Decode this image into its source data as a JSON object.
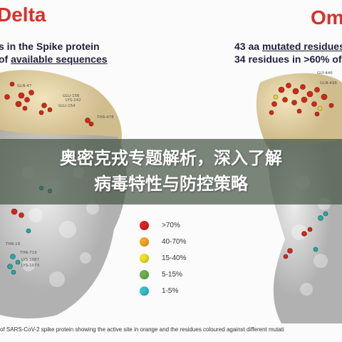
{
  "headings": {
    "left": "Delta",
    "right": "Omi"
  },
  "captions": {
    "left_line1": "s in the Spike protein",
    "left_line2_prefix": "of ",
    "left_line2_emph": "available sequences",
    "right_line1_prefix": "43 aa ",
    "right_line1_emph": "mutated residues",
    "right_line2": "34 residues in >60% of"
  },
  "residue_labels": {
    "left": [
      "GLN-47",
      "GLU-156",
      "LYS-142",
      "GLU-154",
      "THR-478",
      "THR-19",
      "THR-719",
      "LYS-1087",
      "LYS-1073"
    ],
    "right": [
      "GLY-446",
      "GLN-498"
    ]
  },
  "legend": [
    {
      "label": ">70%",
      "color": "#e02020"
    },
    {
      "label": "40-70%",
      "color": "#f5a623"
    },
    {
      "label": "15-40%",
      "color": "#f0e020"
    },
    {
      "label": "5-15%",
      "color": "#6ab04c"
    },
    {
      "label": "1-5%",
      "color": "#2ec4c9"
    }
  ],
  "footer": "of SARS-CoV-2 spike protein showing the active site in orange and the residues coloured against different mutati",
  "banner": {
    "line1": "奥密克戎专题解析，深入了解",
    "line2": "病毒特性与防控策略"
  }
}
